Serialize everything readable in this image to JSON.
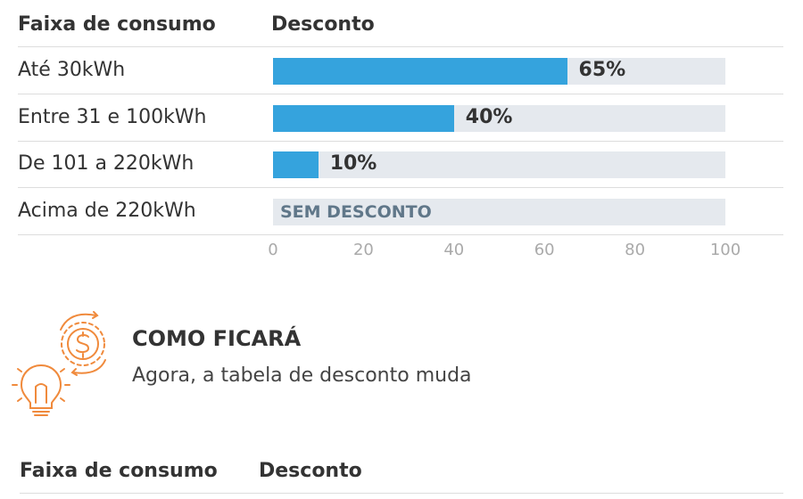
{
  "table1": {
    "col_faixa": "Faixa de consumo",
    "col_desconto": "Desconto"
  },
  "chart_data": {
    "type": "bar",
    "orientation": "horizontal",
    "categories": [
      "Até 30kWh",
      "Entre 31 e 100kWh",
      "De 101 a 220kWh",
      "Acima de 220kWh"
    ],
    "values": [
      65,
      40,
      10,
      0
    ],
    "value_labels": [
      "65%",
      "40%",
      "10%",
      "SEM DESCONTO"
    ],
    "xlim": [
      0,
      100
    ],
    "x_ticks": [
      "0",
      "20",
      "40",
      "60",
      "80",
      "100"
    ],
    "colors": {
      "bar": "#35a3dd",
      "track": "#e5e9ee",
      "no_discount_text": "#607789"
    }
  },
  "section": {
    "title": "COMO FICARÁ",
    "subtitle": "Agora, a tabela de desconto muda",
    "icon": "lightbulb-money-cycle-icon",
    "accent": "#f08a3c"
  },
  "table2": {
    "col_faixa": "Faixa de consumo",
    "col_desconto": "Desconto"
  }
}
